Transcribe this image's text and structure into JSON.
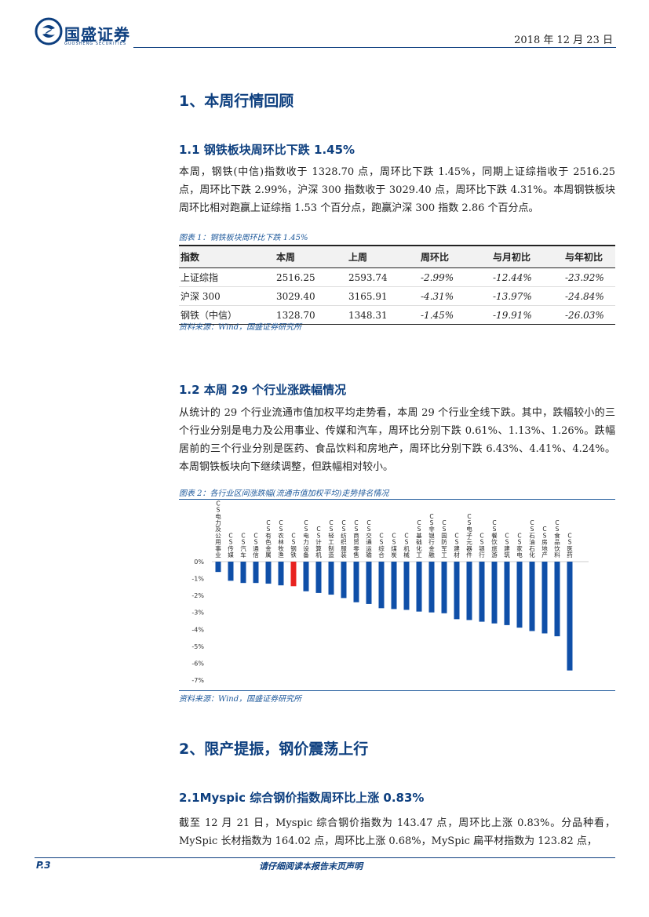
{
  "header": {
    "brand": "国盛证券",
    "brand_sub": "GUOSHENG SECURITIES",
    "date": "2018 年 12 月 23 日"
  },
  "section1": {
    "title": "1、本周行情回顾",
    "sub1": {
      "title": "1.1 钢铁板块周环比下跌 1.45%",
      "para": "本周，钢铁(中信)指数收于 1328.70 点，周环比下跌 1.45%，同期上证综指收于 2516.25 点，周环比下跌 2.99%，沪深 300 指数收于 3029.40 点，周环比下跌 4.31%。本周钢铁板块周环比相对跑赢上证综指 1.53 个百分点，跑赢沪深 300 指数 2.86 个百分点。",
      "caption": "图表 1：钢铁板块周环比下跌 1.45%",
      "table": {
        "headers": [
          "指数",
          "本周",
          "上周",
          "周环比",
          "与月初比",
          "与年初比"
        ],
        "rows": [
          [
            "上证综指",
            "2516.25",
            "2593.74",
            "-2.99%",
            "-12.44%",
            "-23.92%"
          ],
          [
            "沪深 300",
            "3029.40",
            "3165.91",
            "-4.31%",
            "-13.97%",
            "-24.84%"
          ],
          [
            "钢铁（中信）",
            "1328.70",
            "1348.31",
            "-1.45%",
            "-19.91%",
            "-26.03%"
          ]
        ]
      },
      "source": "资料来源：Wind，国盛证券研究所"
    },
    "sub2": {
      "title": "1.2 本周 29 个行业涨跌幅情况",
      "para": "从统计的 29 个行业流通市值加权平均走势看，本周 29 个行业全线下跌。其中，跌幅较小的三个行业分别是电力及公用事业、传媒和汽车，周环比分别下跌 0.61%、1.13%、1.26%。跌幅居前的三个行业分别是医药、食品饮料和房地产，周环比分别下跌 6.43%、4.41%、4.24%。本周钢铁板块向下继续调整，但跌幅相对较小。",
      "caption": "图表 2：各行业区间涨跌幅(流通市值加权平均)走势排名情况",
      "source": "资料来源：Wind，国盛证券研究所"
    }
  },
  "section2": {
    "title": "2、限产提振，钢价震荡上行",
    "sub1": {
      "title": "2.1Myspic 综合钢价指数周环比上涨 0.83%",
      "para": "截至 12 月 21 日，Myspic 综合钢价指数为 143.47 点，周环比上涨 0.83%。分品种看，MySpic 长材指数为 164.02 点，周环比上涨 0.68%，MySpic 扁平材指数为 123.82 点，"
    }
  },
  "footer": {
    "page": "P.3",
    "center": "请仔细阅读本报告末页声明"
  },
  "colors": {
    "brand": "#0d3f7f",
    "bar": "#0f4fa8",
    "highlight": "#e8221f"
  },
  "chart_data": {
    "type": "bar",
    "categories": [
      "CS电力及公用事业",
      "CS传媒",
      "CS汽车",
      "CS通信",
      "CS有色金属",
      "CS农林牧渔",
      "CS钢铁",
      "CS电力设备",
      "CS计算机",
      "CS轻工制造",
      "CS纺织服装",
      "CS商贸零售",
      "CS交通运输",
      "CS综合",
      "CS煤炭",
      "CS机械",
      "CS基础化工",
      "CS非银行金融",
      "CS国防军工",
      "CS建材",
      "CS电子元器件",
      "CS银行",
      "CS餐饮旅游",
      "CS建筑",
      "CS家电",
      "CS石油石化",
      "CS房地产",
      "CS食品饮料",
      "CS医药"
    ],
    "labels": [
      "电力及公用事业",
      "传媒",
      "汽车",
      "通信",
      "有色金属",
      "农林牧渔",
      "钢铁",
      "电力设备",
      "计算机",
      "轻工制造",
      "纺织服装",
      "商贸零售",
      "交通运输",
      "综合",
      "煤炭",
      "机械",
      "基础化工",
      "非银行金融",
      "国防军工",
      "建材",
      "电子元器件",
      "银行",
      "餐饮旅游",
      "建筑",
      "家电",
      "石油石化",
      "房地产",
      "食品饮料",
      "医药"
    ],
    "values": [
      -0.61,
      -1.13,
      -1.26,
      -1.26,
      -1.3,
      -1.4,
      -1.45,
      -1.75,
      -1.85,
      -1.95,
      -2.15,
      -2.4,
      -2.5,
      -2.75,
      -2.8,
      -2.85,
      -2.95,
      -3.0,
      -3.05,
      -3.4,
      -3.45,
      -3.55,
      -3.65,
      -3.75,
      -3.9,
      -4.1,
      -4.24,
      -4.41,
      -6.43
    ],
    "highlight_index": 6,
    "ylim": [
      -7,
      0
    ],
    "yticks": [
      "0%",
      "-1%",
      "-2%",
      "-3%",
      "-4%",
      "-5%",
      "-6%",
      "-7%"
    ],
    "tick_prefix": "CS"
  }
}
